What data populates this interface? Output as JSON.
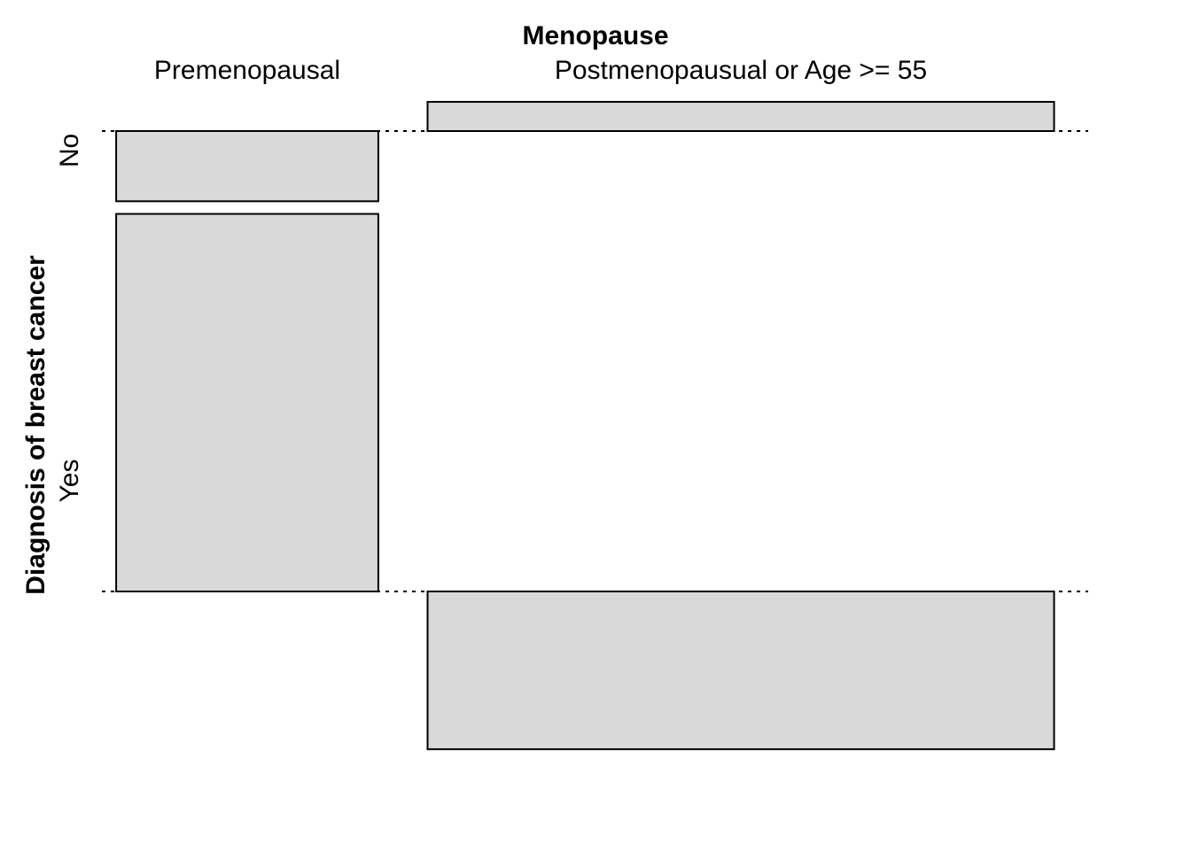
{
  "chart_data": {
    "type": "association-plot",
    "title": "Menopause",
    "xlabel": "Menopause",
    "ylabel": "Diagnosis of breast cancer",
    "columns": [
      "Premenopausal",
      "Postmenopausual or Age >= 55"
    ],
    "rows": [
      "No",
      "Yes"
    ],
    "column_widths": [
      1.0,
      2.39
    ],
    "residuals": [
      [
        -0.77,
        0.32
      ],
      [
        4.14,
        -1.73
      ]
    ],
    "fill_color": "#d9d9d9",
    "border_color": "#000000"
  }
}
